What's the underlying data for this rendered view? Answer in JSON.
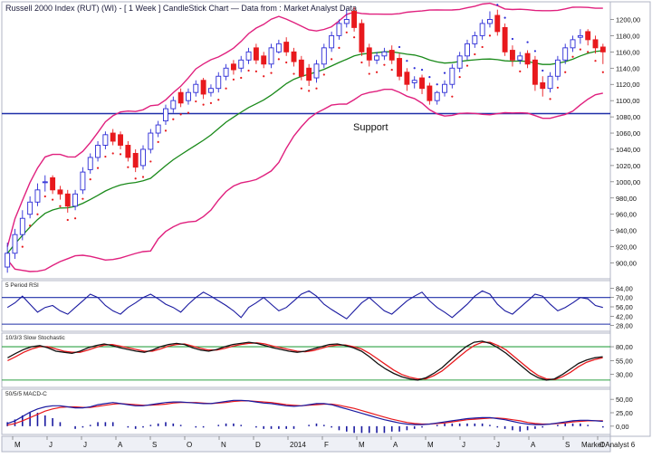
{
  "header": {
    "title": "Russell 2000 Index (RUT) (WI) - [ 1 Week ] CandleStick Chart — Data from : Market Analyst Data"
  },
  "footer": {
    "brand": "Market Analyst 6"
  },
  "colors": {
    "up_candle": "#2b2bd6",
    "down_candle": "#e8191d",
    "bollinger": "#e0207e",
    "moving_average": "#1a8a1a",
    "parabolic_sar": "#e8191d",
    "support_line": "#1f2fa8",
    "oscillator_line": "#1a1aa0",
    "signal_line": "#e8191d",
    "stoch_levels": "#2ea043",
    "rsi_levels": "#1f2fa8"
  },
  "chart_data": [
    {
      "type": "candlestick",
      "panel": "price",
      "yticks": [
        "1200,00",
        "1180,00",
        "1160,00",
        "1140,00",
        "1120,00",
        "1100,00",
        "1080,00",
        "1060,00",
        "1040,00",
        "1020,00",
        "1000,00",
        "980,00",
        "960,00",
        "940,00",
        "920,00",
        "900,00"
      ],
      "ylim": [
        885,
        1215
      ],
      "x_labels": [
        "M",
        "J",
        "J",
        "A",
        "S",
        "O",
        "N",
        "D",
        "2014",
        "F",
        "M",
        "A",
        "M",
        "J",
        "J",
        "A",
        "S",
        "O"
      ],
      "annotation": "Support",
      "support_level": 1084,
      "series": [
        {
          "name": "",
          "values_close": [
            912,
            935,
            955,
            975,
            990,
            1000,
            990,
            985,
            970,
            985,
            1012,
            1030,
            1045,
            1058,
            1050,
            1045,
            1030,
            1018,
            1040,
            1060,
            1070,
            1090,
            1100,
            1097,
            1110,
            1120,
            1108,
            1115,
            1130,
            1140,
            1138,
            1150,
            1160,
            1150,
            1145,
            1165,
            1170,
            1160,
            1148,
            1130,
            1125,
            1145,
            1165,
            1180,
            1195,
            1200,
            1190,
            1160,
            1150,
            1155,
            1160,
            1150,
            1130,
            1120,
            1125,
            1115,
            1100,
            1110,
            1120,
            1140,
            1155,
            1170,
            1180,
            1195,
            1200,
            1185,
            1160,
            1150,
            1155,
            1145,
            1120,
            1115,
            1130,
            1150,
            1165,
            1175,
            1180,
            1175,
            1165,
            1160
          ]
        },
        {
          "name": "",
          "values_open": [
            895,
            912,
            935,
            960,
            975,
            1000,
            1005,
            990,
            985,
            970,
            990,
            1015,
            1030,
            1045,
            1060,
            1058,
            1045,
            1035,
            1020,
            1040,
            1060,
            1075,
            1090,
            1110,
            1100,
            1110,
            1125,
            1110,
            1115,
            1130,
            1145,
            1140,
            1150,
            1165,
            1155,
            1145,
            1160,
            1172,
            1160,
            1150,
            1140,
            1128,
            1145,
            1165,
            1180,
            1195,
            1210,
            1195,
            1165,
            1150,
            1155,
            1162,
            1152,
            1135,
            1122,
            1128,
            1118,
            1100,
            1110,
            1120,
            1140,
            1155,
            1170,
            1180,
            1195,
            1205,
            1190,
            1162,
            1150,
            1158,
            1150,
            1122,
            1115,
            1130,
            1150,
            1165,
            1178,
            1185,
            1175,
            1166
          ]
        },
        {
          "name": "",
          "values_high": [
            925,
            942,
            965,
            982,
            998,
            1008,
            1008,
            995,
            990,
            990,
            1018,
            1035,
            1050,
            1062,
            1065,
            1062,
            1050,
            1040,
            1045,
            1065,
            1075,
            1095,
            1105,
            1115,
            1115,
            1125,
            1128,
            1120,
            1135,
            1145,
            1150,
            1155,
            1165,
            1170,
            1160,
            1170,
            1175,
            1178,
            1165,
            1155,
            1145,
            1150,
            1170,
            1185,
            1200,
            1212,
            1215,
            1200,
            1170,
            1160,
            1165,
            1168,
            1158,
            1140,
            1130,
            1132,
            1122,
            1112,
            1125,
            1145,
            1160,
            1175,
            1185,
            1200,
            1210,
            1212,
            1195,
            1168,
            1160,
            1162,
            1155,
            1130,
            1135,
            1155,
            1170,
            1180,
            1188,
            1188,
            1180,
            1170
          ]
        },
        {
          "name": "",
          "values_low": [
            888,
            905,
            928,
            955,
            970,
            988,
            985,
            978,
            962,
            965,
            985,
            1010,
            1025,
            1040,
            1045,
            1040,
            1025,
            1012,
            1015,
            1035,
            1055,
            1070,
            1085,
            1092,
            1095,
            1105,
            1102,
            1105,
            1110,
            1125,
            1132,
            1135,
            1145,
            1145,
            1140,
            1140,
            1158,
            1155,
            1142,
            1125,
            1118,
            1122,
            1140,
            1160,
            1175,
            1190,
            1185,
            1155,
            1142,
            1145,
            1150,
            1145,
            1125,
            1112,
            1115,
            1108,
            1095,
            1095,
            1105,
            1115,
            1135,
            1150,
            1165,
            1175,
            1190,
            1180,
            1155,
            1142,
            1145,
            1140,
            1112,
            1105,
            1110,
            1125,
            1145,
            1160,
            1170,
            1168,
            1158,
            1145
          ]
        }
      ]
    },
    {
      "type": "line",
      "panel": "rsi",
      "title": "5 Period RSI",
      "yticks": [
        "84,00",
        "70,00",
        "56,00",
        "42,00",
        "28,00"
      ],
      "ylim": [
        22,
        90
      ],
      "levels": [
        70,
        30
      ],
      "values": [
        55,
        62,
        72,
        60,
        48,
        55,
        58,
        50,
        45,
        55,
        65,
        75,
        70,
        58,
        50,
        45,
        55,
        62,
        70,
        75,
        68,
        60,
        55,
        48,
        60,
        70,
        78,
        72,
        65,
        58,
        50,
        40,
        55,
        62,
        70,
        60,
        50,
        55,
        65,
        75,
        80,
        72,
        60,
        52,
        45,
        38,
        50,
        62,
        70,
        60,
        50,
        45,
        55,
        65,
        72,
        78,
        65,
        55,
        48,
        40,
        50,
        60,
        72,
        80,
        75,
        60,
        50,
        45,
        55,
        65,
        75,
        72,
        60,
        50,
        55,
        62,
        70,
        68,
        58,
        55
      ]
    },
    {
      "type": "line",
      "panel": "stochastic",
      "title": "10/3/3 Slow Stochastic",
      "yticks": [
        "80,00",
        "55,00",
        "30,00"
      ],
      "ylim": [
        10,
        98
      ],
      "levels": [
        80,
        20
      ],
      "series": [
        {
          "name": "",
          "values": [
            60,
            68,
            75,
            80,
            82,
            78,
            72,
            70,
            68,
            72,
            78,
            82,
            85,
            82,
            78,
            75,
            72,
            70,
            74,
            80,
            84,
            86,
            84,
            78,
            74,
            72,
            75,
            80,
            84,
            86,
            88,
            86,
            82,
            78,
            75,
            72,
            70,
            72,
            76,
            80,
            84,
            85,
            82,
            78,
            72,
            62,
            50,
            40,
            32,
            26,
            22,
            20,
            24,
            32,
            42,
            55,
            68,
            80,
            88,
            90,
            86,
            78,
            68,
            56,
            44,
            32,
            24,
            20,
            22,
            30,
            40,
            50,
            56,
            60,
            62
          ]
        },
        {
          "name": "",
          "values": [
            55,
            62,
            70,
            76,
            80,
            80,
            76,
            72,
            70,
            70,
            74,
            79,
            83,
            84,
            81,
            78,
            75,
            72,
            72,
            76,
            81,
            84,
            85,
            81,
            77,
            74,
            74,
            77,
            81,
            84,
            86,
            87,
            85,
            81,
            78,
            75,
            72,
            71,
            73,
            77,
            81,
            83,
            83,
            80,
            76,
            68,
            58,
            48,
            38,
            30,
            25,
            22,
            22,
            28,
            36,
            48,
            60,
            72,
            82,
            88,
            88,
            82,
            74,
            62,
            50,
            38,
            28,
            22,
            21,
            26,
            34,
            44,
            52,
            57,
            60
          ]
        }
      ]
    },
    {
      "type": "line",
      "panel": "macd",
      "title": "50/5/5 MACD-C",
      "yticks": [
        "50,00",
        "25,00",
        "0,00"
      ],
      "ylim": [
        -12,
        62
      ],
      "series": [
        {
          "name": "",
          "values": [
            5,
            10,
            18,
            26,
            32,
            36,
            38,
            38,
            36,
            34,
            34,
            36,
            40,
            42,
            44,
            42,
            40,
            38,
            38,
            40,
            42,
            44,
            45,
            45,
            44,
            43,
            42,
            42,
            44,
            46,
            48,
            48,
            47,
            45,
            43,
            42,
            40,
            38,
            37,
            38,
            40,
            42,
            42,
            40,
            36,
            32,
            28,
            24,
            20,
            16,
            12,
            9,
            6,
            4,
            3,
            3,
            4,
            6,
            8,
            10,
            12,
            14,
            15,
            16,
            16,
            14,
            12,
            9,
            6,
            4,
            3,
            3,
            4,
            6,
            8,
            10,
            11,
            11,
            10,
            9
          ]
        },
        {
          "name": "",
          "values": [
            2,
            5,
            10,
            16,
            22,
            28,
            32,
            35,
            36,
            36,
            35,
            35,
            37,
            39,
            41,
            42,
            41,
            40,
            39,
            39,
            40,
            41,
            43,
            44,
            44,
            44,
            43,
            42,
            43,
            44,
            46,
            47,
            47,
            46,
            45,
            44,
            42,
            40,
            39,
            38,
            39,
            40,
            41,
            41,
            39,
            36,
            33,
            29,
            25,
            21,
            17,
            13,
            10,
            7,
            5,
            4,
            4,
            5,
            6,
            8,
            10,
            12,
            13,
            14,
            15,
            15,
            14,
            12,
            10,
            7,
            5,
            4,
            4,
            5,
            6,
            8,
            9,
            10,
            10,
            10
          ]
        }
      ]
    }
  ]
}
